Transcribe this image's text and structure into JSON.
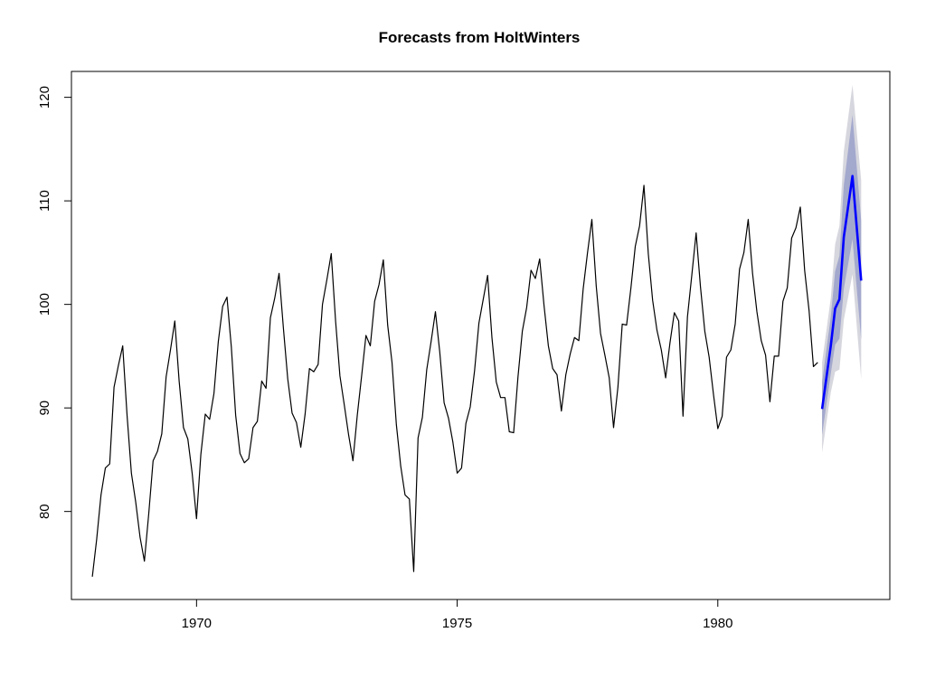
{
  "chart_data": {
    "type": "line",
    "title": "Forecasts from HoltWinters",
    "xlabel": "",
    "ylabel": "",
    "xlim": [
      1967.6,
      1983.3
    ],
    "ylim": [
      71.5,
      122.5
    ],
    "x_ticks": [
      1970,
      1975,
      1980
    ],
    "y_ticks": [
      80,
      90,
      100,
      110,
      120
    ],
    "grid": false,
    "colors": {
      "history": "#000000",
      "forecast": "#0000ff",
      "band80": "#a3a8cd",
      "band95": "#d6d6de",
      "frame": "#000000"
    },
    "history": {
      "start": 1968.0,
      "frequency": 12,
      "values": [
        73.7,
        77.3,
        81.6,
        84.2,
        84.6,
        92.0,
        94.1,
        96.0,
        89.3,
        83.7,
        80.9,
        77.5,
        75.2,
        79.8,
        84.9,
        85.8,
        87.5,
        93.0,
        95.6,
        98.4,
        92.6,
        88.1,
        87.0,
        83.7,
        79.3,
        85.5,
        89.4,
        88.9,
        91.4,
        96.4,
        99.8,
        100.7,
        95.9,
        89.3,
        85.6,
        84.7,
        85.1,
        88.1,
        88.7,
        92.6,
        91.9,
        98.7,
        100.6,
        103.0,
        97.7,
        92.8,
        89.5,
        88.6,
        86.2,
        89.4,
        93.8,
        93.5,
        94.2,
        100.0,
        102.4,
        104.9,
        98.4,
        93.1,
        90.3,
        87.4,
        84.9,
        89.3,
        93.1,
        97.0,
        96.0,
        100.3,
        101.9,
        104.3,
        98.0,
        94.4,
        88.4,
        84.4,
        81.6,
        81.2,
        74.2,
        87.1,
        89.1,
        93.7,
        96.4,
        99.3,
        95.4,
        90.5,
        89.0,
        86.7,
        83.7,
        84.2,
        88.5,
        90.1,
        93.6,
        98.2,
        100.5,
        102.8,
        96.8,
        92.5,
        91.0,
        91.0,
        87.7,
        87.6,
        93.0,
        97.4,
        99.7,
        103.3,
        102.5,
        104.4,
        99.9,
        96.0,
        93.8,
        93.2,
        89.7,
        93.2,
        95.2,
        96.8,
        96.5,
        101.5,
        105.0,
        108.2,
        101.8,
        97.2,
        95.1,
        92.9,
        88.1,
        92.0,
        98.1,
        98.0,
        101.6,
        105.6,
        107.6,
        111.5,
        104.9,
        100.4,
        97.5,
        95.6,
        92.9,
        96.3,
        99.2,
        98.4,
        89.2,
        98.8,
        102.8,
        106.9,
        101.7,
        97.4,
        94.9,
        91.3,
        88.0,
        89.2,
        94.9,
        95.6,
        98.1,
        103.4,
        105.0,
        108.2,
        103.0,
        99.3,
        96.5,
        95.1,
        90.6,
        95.0,
        95.0,
        100.3,
        101.6,
        106.4,
        107.4,
        109.4,
        103.3,
        99.4,
        94.0,
        94.4
      ]
    },
    "forecast": {
      "x": [
        1982.0,
        1982.1667,
        1982.25,
        1982.3333,
        1982.4167,
        1982.5833,
        1982.75
      ],
      "mean": [
        89.9,
        96.0,
        99.6,
        100.5,
        106.5,
        112.4,
        102.3
      ],
      "lo80": [
        87.4,
        93.3,
        96.1,
        96.7,
        101.5,
        106.3,
        96.6
      ],
      "hi80": [
        92.5,
        98.8,
        103.2,
        104.7,
        111.5,
        118.3,
        108.1
      ],
      "lo95": [
        85.7,
        91.5,
        93.5,
        93.7,
        98.5,
        102.9,
        92.8
      ],
      "hi95": [
        94.4,
        100.6,
        105.8,
        107.6,
        114.8,
        121.2,
        112.0
      ]
    }
  }
}
